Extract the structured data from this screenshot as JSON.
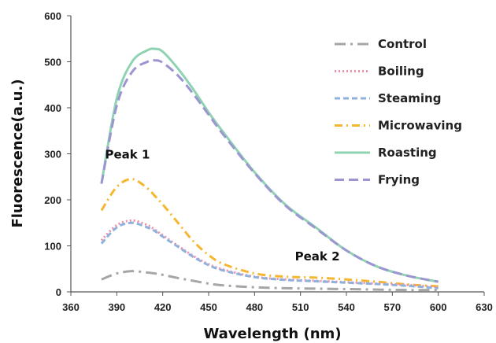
{
  "chart_data": {
    "type": "line",
    "title": "",
    "xlabel": "Wavelength (nm)",
    "ylabel": "Fluorescence(a.u.)",
    "xlim": [
      360,
      630
    ],
    "ylim": [
      0,
      600
    ],
    "xticks": [
      360,
      390,
      420,
      450,
      480,
      510,
      540,
      570,
      600,
      630
    ],
    "yticks": [
      0,
      100,
      200,
      300,
      400,
      500,
      600
    ],
    "grid": false,
    "legend_position": "top-right",
    "x": [
      380,
      390,
      400,
      410,
      415,
      420,
      430,
      440,
      450,
      460,
      480,
      500,
      520,
      540,
      560,
      580,
      600
    ],
    "series": [
      {
        "name": "Control",
        "color": "#a6a6a6",
        "dash": "long-dash-dot",
        "values": [
          27,
          40,
          45,
          42,
          40,
          37,
          30,
          24,
          18,
          14,
          10,
          8,
          7,
          6,
          5,
          4,
          4
        ]
      },
      {
        "name": "Boiling",
        "color": "#ef8fa8",
        "dash": "dotted",
        "values": [
          112,
          145,
          155,
          145,
          135,
          123,
          100,
          78,
          60,
          48,
          33,
          27,
          24,
          21,
          18,
          15,
          10
        ]
      },
      {
        "name": "Steaming",
        "color": "#8fb2dd",
        "dash": "dashed",
        "values": [
          105,
          140,
          150,
          140,
          132,
          120,
          98,
          76,
          58,
          46,
          32,
          26,
          23,
          20,
          17,
          13,
          8
        ]
      },
      {
        "name": "Microwaving",
        "color": "#f5b731",
        "dash": "dash-dot",
        "values": [
          177,
          228,
          245,
          225,
          208,
          190,
          150,
          110,
          80,
          60,
          40,
          33,
          31,
          27,
          22,
          16,
          12
        ]
      },
      {
        "name": "Roasting",
        "color": "#8fd3b3",
        "dash": "solid",
        "values": [
          235,
          420,
          500,
          525,
          528,
          522,
          485,
          440,
          390,
          345,
          260,
          190,
          140,
          90,
          55,
          35,
          22
        ]
      },
      {
        "name": "Frying",
        "color": "#9b95d0",
        "dash": "long-dash",
        "values": [
          235,
          405,
          478,
          500,
          503,
          498,
          470,
          430,
          385,
          340,
          258,
          188,
          138,
          90,
          55,
          35,
          22
        ]
      }
    ],
    "annotations": [
      {
        "text": "Peak 1",
        "x": 397,
        "y": 290
      },
      {
        "text": "Peak 2",
        "x": 521,
        "y": 68
      }
    ]
  }
}
